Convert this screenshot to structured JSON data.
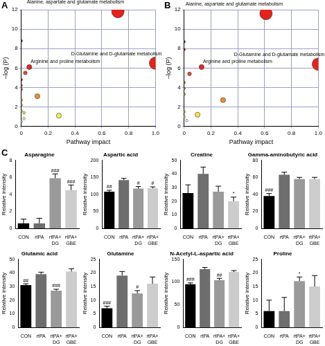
{
  "chart_data": [
    {
      "type": "bubble",
      "panel": "A",
      "x_label": "Pathway impact",
      "y_label": "–log (P)",
      "xlim": [
        0,
        1
      ],
      "ylim": [
        0,
        12
      ],
      "xticks": [
        0,
        0.2,
        0.4,
        0.6,
        0.8,
        {
          "value": 1,
          "label": "1.0"
        }
      ],
      "yticks": [
        0,
        2,
        4,
        6,
        8,
        10,
        12
      ],
      "grid": true,
      "x": [
        0.72,
        1.0,
        0.0,
        0.06,
        0.03,
        0.0,
        0.0,
        0.0,
        0.12,
        0.0,
        0.0,
        0.0,
        0.02,
        0.28,
        0.02,
        0.0
      ],
      "y": [
        11.8,
        6.5,
        8.8,
        6.1,
        5.5,
        4.8,
        4.2,
        3.8,
        3.1,
        2.7,
        2.2,
        1.6,
        1.4,
        1.1,
        0.8,
        0.5
      ],
      "sizes": [
        10,
        10,
        2,
        4,
        3,
        2,
        2,
        2,
        4,
        2,
        2,
        2,
        2,
        4,
        2,
        2
      ],
      "colors": [
        "#e3241b",
        "#e3241b",
        "#a50f15",
        "#d7301f",
        "#e34a33",
        "#d7301f",
        "#e34a33",
        "#e8603c",
        "#f08c3a",
        "#f0a040",
        "#f5b947",
        "#f5d84a",
        "#f5e642",
        "#f5ee50",
        "#fff9c0",
        "#ffffff"
      ],
      "point_labels": [
        "Alanine, aspartate and glutamate metabolism",
        "D-Glutamine and D-glutamate metabolism",
        null,
        "Arginine and proline metabolism",
        null,
        null,
        null,
        null,
        null,
        null,
        null,
        null,
        null,
        null,
        null,
        null
      ]
    },
    {
      "type": "bubble",
      "panel": "B",
      "x_label": "Pathway impact",
      "y_label": "–log (P)",
      "xlim": [
        0,
        1
      ],
      "ylim": [
        0,
        12
      ],
      "xticks": [
        0,
        0.2,
        0.4,
        0.6,
        0.8,
        {
          "value": 1,
          "label": "1.0"
        }
      ],
      "yticks": [
        0,
        2,
        4,
        6,
        8,
        10,
        12
      ],
      "grid": true,
      "x": [
        0.61,
        1.0,
        0.0,
        0.0,
        0.13,
        0.04,
        0.0,
        0.0,
        0.0,
        0.29,
        0.1,
        0.0,
        0.0,
        0.02
      ],
      "y": [
        11.6,
        6.4,
        8.7,
        7.9,
        6.1,
        5.4,
        4.5,
        3.9,
        3.3,
        2.7,
        1.2,
        1.5,
        1.0,
        0.6
      ],
      "sizes": [
        10,
        10,
        2,
        2,
        4,
        3,
        2,
        2,
        2,
        4,
        4,
        2,
        2,
        2
      ],
      "colors": [
        "#e3241b",
        "#e3241b",
        "#a50f15",
        "#b81b1b",
        "#d7301f",
        "#e34a33",
        "#e8603c",
        "#f08c3a",
        "#f0a040",
        "#f08c3a",
        "#f5e642",
        "#f5d84a",
        "#fff9c0",
        "#ffffff"
      ],
      "point_labels": [
        "Alanine, aspartate and glutamate metabolism",
        "D-Glutamine and D-glutamate metabolism",
        null,
        null,
        "Arginine and proline metabolism",
        null,
        null,
        null,
        null,
        null,
        null,
        null,
        null,
        null
      ]
    },
    {
      "type": "bar",
      "panel": "C",
      "title": "Asparagine",
      "y_label": "Relative intensity",
      "categories": [
        "CON",
        "rtPA",
        "rtPA+ DG",
        "rtPA+ GBE"
      ],
      "values": [
        0.6,
        0.6,
        5.9,
        4.5
      ],
      "errors": [
        0.5,
        0.6,
        0.5,
        0.6
      ],
      "significance": [
        null,
        null,
        "###",
        "###"
      ],
      "colors": [
        "#000000",
        "#6e6e6e",
        "#9a9a9a",
        "#cccccc"
      ],
      "ylim": [
        0,
        8
      ],
      "yticks": [
        0,
        2,
        4,
        6,
        8
      ],
      "grid": false
    },
    {
      "type": "bar",
      "title": "Aspartic acid",
      "y_label": "Relative intensity",
      "categories": [
        "CON",
        "rtPA",
        "rtPA+ DG",
        "rtPA+ GBE"
      ],
      "values": [
        108,
        142,
        117,
        118
      ],
      "errors": [
        4,
        5,
        6,
        4
      ],
      "significance": [
        "##",
        null,
        "#",
        "#"
      ],
      "colors": [
        "#000000",
        "#6e6e6e",
        "#9a9a9a",
        "#cccccc"
      ],
      "ylim": [
        0,
        200
      ],
      "yticks": [
        0,
        50,
        100,
        150,
        200
      ],
      "grid": false
    },
    {
      "type": "bar",
      "title": "Creatine",
      "y_label": "Relative intensity",
      "categories": [
        "CON",
        "rtPA",
        "rtPA+ DG",
        "rtPA+ GBE"
      ],
      "values": [
        26,
        40,
        27,
        20
      ],
      "errors": [
        6,
        5,
        4,
        3
      ],
      "significance": [
        null,
        null,
        null,
        "*"
      ],
      "colors": [
        "#000000",
        "#6e6e6e",
        "#9a9a9a",
        "#cccccc"
      ],
      "ylim": [
        0,
        50
      ],
      "yticks": [
        0,
        10,
        20,
        30,
        40,
        50
      ],
      "grid": false
    },
    {
      "type": "bar",
      "title": "Gamma-aminobutyric acid",
      "y_label": "Relative intensity",
      "categories": [
        "CON",
        "rtPA",
        "rtPA+ DG",
        "rtPA+ GBE"
      ],
      "values": [
        38,
        63,
        58,
        58
      ],
      "errors": [
        3,
        3,
        2,
        2
      ],
      "significance": [
        "###",
        null,
        null,
        null
      ],
      "colors": [
        "#000000",
        "#6e6e6e",
        "#9a9a9a",
        "#cccccc"
      ],
      "ylim": [
        0,
        80
      ],
      "yticks": [
        0,
        20,
        40,
        60,
        80
      ],
      "grid": false
    },
    {
      "type": "bar",
      "title": "Glutamic acid",
      "y_label": "Relative intensity",
      "categories": [
        "CON",
        "rtPA",
        "rtPA+ DG",
        "rtPA+ GBE"
      ],
      "values": [
        31,
        39,
        27,
        41
      ],
      "errors": [
        1,
        1.5,
        1,
        2
      ],
      "significance": [
        "##",
        null,
        "###",
        null
      ],
      "colors": [
        "#000000",
        "#6e6e6e",
        "#9a9a9a",
        "#cccccc"
      ],
      "ylim": [
        0,
        50
      ],
      "yticks": [
        0,
        10,
        20,
        30,
        40,
        50
      ],
      "grid": false
    },
    {
      "type": "bar",
      "title": "Glutamine",
      "y_label": "Relative intensity",
      "categories": [
        "CON",
        "rtPA",
        "rtPA+ DG",
        "rtPA+ GBE"
      ],
      "values": [
        7,
        19,
        12.5,
        16
      ],
      "errors": [
        0.8,
        1.5,
        1,
        2.5
      ],
      "significance": [
        "###",
        null,
        "#",
        null
      ],
      "colors": [
        "#000000",
        "#6e6e6e",
        "#9a9a9a",
        "#cccccc"
      ],
      "ylim": [
        0,
        25
      ],
      "yticks": [
        0,
        5,
        10,
        15,
        20,
        25
      ],
      "grid": false
    },
    {
      "type": "bar",
      "title": "N-Acetyl-L-aspartic acid",
      "y_label": "Relative intensity",
      "categories": [
        "CON",
        "rtPA",
        "rtPA+ DG",
        "rtPA+ GBE"
      ],
      "values": [
        95,
        128,
        104,
        122
      ],
      "errors": [
        3,
        4,
        4,
        3
      ],
      "significance": [
        "###",
        null,
        "##",
        null
      ],
      "colors": [
        "#000000",
        "#6e6e6e",
        "#9a9a9a",
        "#cccccc"
      ],
      "ylim": [
        0,
        150
      ],
      "yticks": [
        0,
        50,
        100,
        150
      ],
      "grid": false
    },
    {
      "type": "bar",
      "title": "Proline",
      "y_label": "Relative intensity",
      "categories": [
        "CON",
        "rtPA",
        "rtPA+ DG",
        "rtPA+ GBE"
      ],
      "values": [
        6,
        6,
        17,
        15
      ],
      "errors": [
        4,
        5,
        1.5,
        4
      ],
      "significance": [
        null,
        null,
        "*",
        null
      ],
      "colors": [
        "#000000",
        "#6e6e6e",
        "#9a9a9a",
        "#cccccc"
      ],
      "ylim": [
        0,
        25
      ],
      "yticks": [
        0,
        5,
        10,
        15,
        20,
        25
      ],
      "grid": false
    }
  ]
}
